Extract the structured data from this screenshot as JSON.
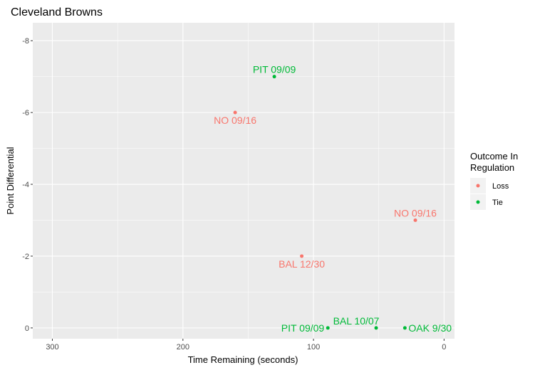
{
  "chart_data": {
    "type": "scatter",
    "title": "Cleveland Browns",
    "xlabel": "Time Remaining (seconds)",
    "ylabel": "Point Differential",
    "xlim": [
      315,
      -8
    ],
    "ylim": [
      0.3,
      -8.5
    ],
    "x_reversed": true,
    "y_reversed": true,
    "x_ticks": [
      300,
      200,
      100,
      0
    ],
    "y_ticks": [
      0,
      -2,
      -4,
      -6,
      -8
    ],
    "x_tick_labels": [
      "300",
      "200",
      "100",
      "0"
    ],
    "y_tick_labels": [
      "0",
      "-2",
      "-4",
      "-6",
      "-8"
    ],
    "grid": true,
    "legend_position": "right",
    "legend": {
      "title_lines": [
        "Outcome In",
        "Regulation"
      ],
      "entries": [
        {
          "label": "Loss",
          "color": "#F8766D"
        },
        {
          "label": "Tie",
          "color": "#00BA38"
        }
      ]
    },
    "colors": {
      "Loss": "#F8766D",
      "Tie": "#00BA38"
    },
    "points": [
      {
        "x": 130,
        "y": -7,
        "label": "PIT 09/09",
        "outcome": "Tie",
        "label_pos": "above"
      },
      {
        "x": 160,
        "y": -6,
        "label": "NO 09/16",
        "outcome": "Loss",
        "label_pos": "below"
      },
      {
        "x": 22,
        "y": -3,
        "label": "NO 09/16",
        "outcome": "Loss",
        "label_pos": "above"
      },
      {
        "x": 109,
        "y": -2,
        "label": "BAL 12/30",
        "outcome": "Loss",
        "label_pos": "below"
      },
      {
        "x": 89,
        "y": 0,
        "label": "PIT 09/09",
        "outcome": "Tie",
        "label_pos": "left"
      },
      {
        "x": 52,
        "y": 0,
        "label": "BAL 10/07",
        "outcome": "Tie",
        "label_pos": "above-left"
      },
      {
        "x": 30,
        "y": 0,
        "label": "OAK 9/30",
        "outcome": "Tie",
        "label_pos": "right"
      }
    ]
  }
}
